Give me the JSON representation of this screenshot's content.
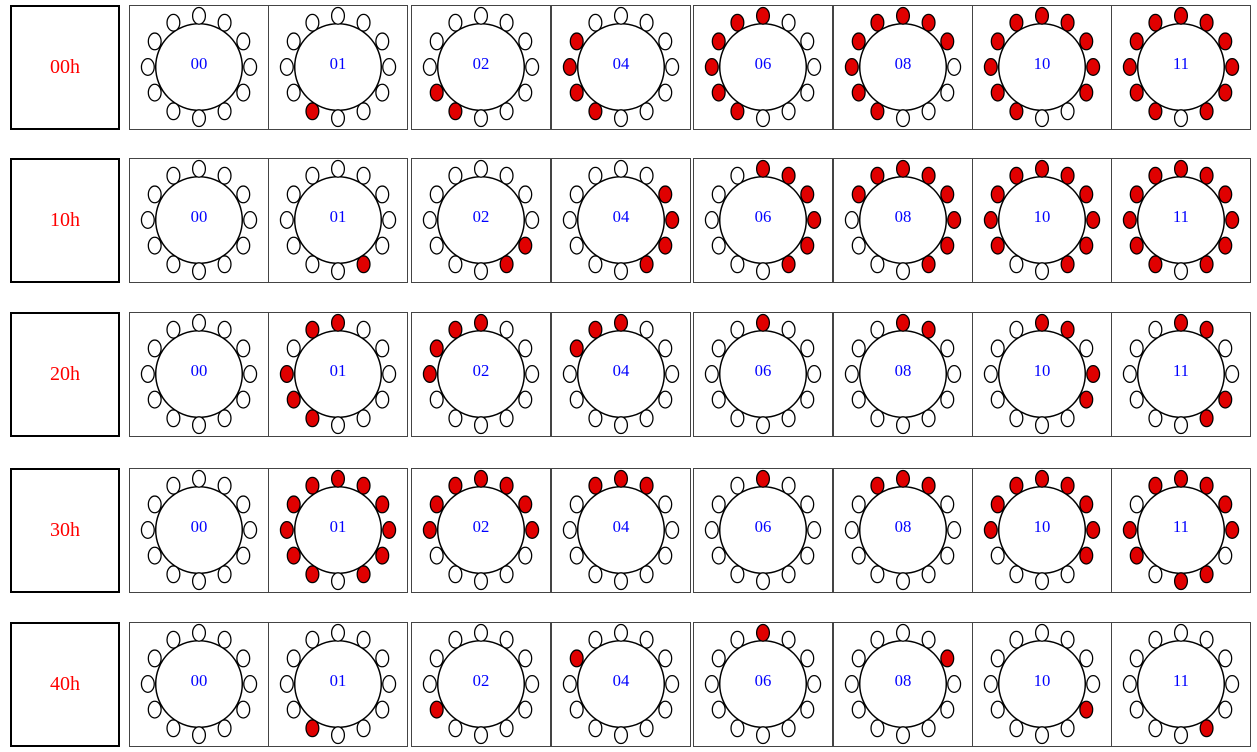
{
  "colors": {
    "label_text": "#ff0000",
    "cell_code_text": "#0000ff",
    "lit": "#e00000",
    "unlit": "#ffffff",
    "outline": "#000000"
  },
  "icon": "ring-of-12-dots",
  "rows": [
    {
      "label": "00h",
      "cells": [
        {
          "code": "00",
          "lit": []
        },
        {
          "code": "01",
          "lit": [
            7
          ]
        },
        {
          "code": "02",
          "lit": [
            7,
            8
          ]
        },
        {
          "code": "04",
          "lit": [
            7,
            8,
            9,
            10
          ]
        },
        {
          "code": "06",
          "lit": [
            7,
            8,
            9,
            10,
            11,
            0
          ]
        },
        {
          "code": "08",
          "lit": [
            7,
            8,
            9,
            10,
            11,
            0,
            1,
            2
          ]
        },
        {
          "code": "10",
          "lit": [
            7,
            8,
            9,
            10,
            11,
            0,
            1,
            2,
            3,
            4
          ]
        },
        {
          "code": "11",
          "lit": [
            7,
            8,
            9,
            10,
            11,
            0,
            1,
            2,
            3,
            4,
            5
          ]
        }
      ]
    },
    {
      "label": "10h",
      "cells": [
        {
          "code": "00",
          "lit": []
        },
        {
          "code": "01",
          "lit": [
            5
          ]
        },
        {
          "code": "02",
          "lit": [
            4,
            5
          ]
        },
        {
          "code": "04",
          "lit": [
            2,
            3,
            4,
            5
          ]
        },
        {
          "code": "06",
          "lit": [
            0,
            1,
            2,
            3,
            4,
            5
          ]
        },
        {
          "code": "08",
          "lit": [
            11,
            0,
            1,
            2,
            3,
            4,
            5,
            10
          ]
        },
        {
          "code": "10",
          "lit": [
            10,
            11,
            0,
            1,
            2,
            3,
            4,
            5,
            8,
            9
          ]
        },
        {
          "code": "11",
          "lit": [
            8,
            9,
            10,
            11,
            0,
            1,
            2,
            3,
            4,
            5,
            7
          ]
        }
      ]
    },
    {
      "label": "20h",
      "cells": [
        {
          "code": "00",
          "lit": []
        },
        {
          "code": "01",
          "lit": [
            11,
            0,
            9,
            8,
            7
          ]
        },
        {
          "code": "02",
          "lit": [
            11,
            0,
            10,
            9
          ]
        },
        {
          "code": "04",
          "lit": [
            11,
            0,
            10
          ]
        },
        {
          "code": "06",
          "lit": [
            0
          ]
        },
        {
          "code": "08",
          "lit": [
            0,
            1
          ]
        },
        {
          "code": "10",
          "lit": [
            0,
            1,
            3,
            4
          ]
        },
        {
          "code": "11",
          "lit": [
            0,
            1,
            4,
            5
          ]
        }
      ]
    },
    {
      "label": "30h",
      "cells": [
        {
          "code": "00",
          "lit": []
        },
        {
          "code": "01",
          "lit": [
            11,
            0,
            1,
            2,
            3,
            4,
            5,
            7,
            8,
            9,
            10
          ]
        },
        {
          "code": "02",
          "lit": [
            11,
            0,
            1,
            2,
            3,
            9,
            10
          ]
        },
        {
          "code": "04",
          "lit": [
            11,
            0,
            1
          ]
        },
        {
          "code": "06",
          "lit": [
            0
          ]
        },
        {
          "code": "08",
          "lit": [
            11,
            0,
            1
          ]
        },
        {
          "code": "10",
          "lit": [
            11,
            0,
            1,
            2,
            3,
            4,
            9,
            10
          ]
        },
        {
          "code": "11",
          "lit": [
            11,
            0,
            1,
            2,
            3,
            5,
            6,
            8,
            9
          ]
        }
      ]
    },
    {
      "label": "40h",
      "cells": [
        {
          "code": "00",
          "lit": []
        },
        {
          "code": "01",
          "lit": [
            7
          ]
        },
        {
          "code": "02",
          "lit": [
            8
          ]
        },
        {
          "code": "04",
          "lit": [
            10
          ]
        },
        {
          "code": "06",
          "lit": [
            0
          ]
        },
        {
          "code": "08",
          "lit": [
            2
          ]
        },
        {
          "code": "10",
          "lit": [
            4
          ]
        },
        {
          "code": "11",
          "lit": [
            5
          ]
        }
      ]
    }
  ]
}
